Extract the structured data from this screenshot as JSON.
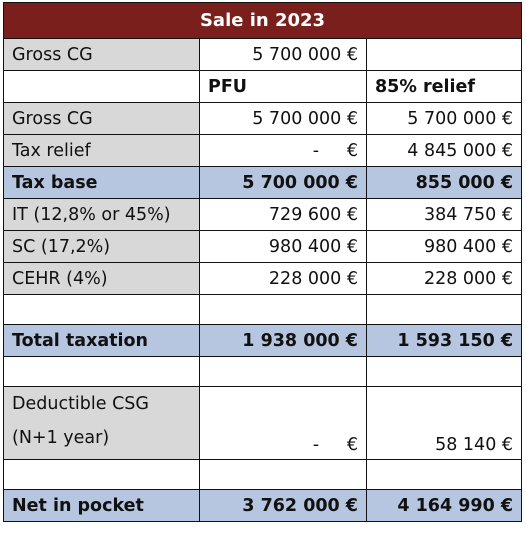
{
  "title": "Sale in 2023",
  "row_gross_top": {
    "label": "Gross CG",
    "value": "5 700 000 €"
  },
  "headers": {
    "pfu": "PFU",
    "relief": "85% relief"
  },
  "rows": [
    {
      "label": "Gross CG",
      "pfu": "5 700 000 €",
      "relief": "5 700 000 €"
    },
    {
      "label": "Tax relief",
      "pfu": "-     €",
      "relief": "4 845 000 €"
    },
    {
      "label": "Tax base",
      "pfu": "5 700 000 €",
      "relief": "855 000 €"
    },
    {
      "label": "IT (12,8% or 45%)",
      "pfu": "729 600 €",
      "relief": "384 750 €"
    },
    {
      "label": "SC (17,2%)",
      "pfu": "980 400 €",
      "relief": "980 400 €"
    },
    {
      "label": "CEHR (4%)",
      "pfu": "228 000 €",
      "relief": "228 000 €"
    }
  ],
  "total": {
    "label": "Total taxation",
    "pfu": "1 938 000 €",
    "relief": "1 593 150 €"
  },
  "csg": {
    "label_line1": "Deductible CSG",
    "label_line2": "(N+1 year)",
    "pfu": "-     €",
    "relief": "58 140 €"
  },
  "net": {
    "label": "Net in pocket",
    "pfu": "3 762 000 €",
    "relief": "4 164 990 €"
  },
  "colors": {
    "title_bg": "#7a1f1c",
    "highlight_bg": "#b7c6e0",
    "label_bg": "#d8d8d8"
  }
}
